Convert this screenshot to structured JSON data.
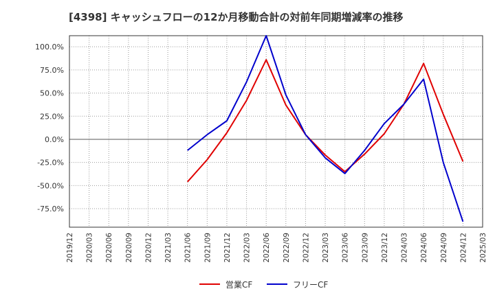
{
  "chart_data": {
    "type": "line",
    "title": "[4398]  キャッシュフローの12か月移動合計の対前年同期増減率の推移",
    "xlabel": "",
    "ylabel": "",
    "x_ticks": [
      "2019/12",
      "2020/03",
      "2020/06",
      "2020/09",
      "2020/12",
      "2021/03",
      "2021/06",
      "2021/09",
      "2021/12",
      "2022/03",
      "2022/06",
      "2022/09",
      "2022/12",
      "2023/03",
      "2023/06",
      "2023/09",
      "2023/12",
      "2024/03",
      "2024/06",
      "2024/09",
      "2024/12",
      "2025/03"
    ],
    "y_ticks": [
      "100.0%",
      "75.0%",
      "50.0%",
      "25.0%",
      "0.0%",
      "-25.0%",
      "-50.0%",
      "-75.0%"
    ],
    "ylim": [
      -95,
      112
    ],
    "grid": true,
    "legend_position": "bottom",
    "series": [
      {
        "name": "営業CF",
        "color": "#e00000",
        "x": [
          "2021/06",
          "2021/09",
          "2021/12",
          "2022/03",
          "2022/06",
          "2022/09",
          "2022/12",
          "2023/03",
          "2023/06",
          "2023/09",
          "2023/12",
          "2024/03",
          "2024/06",
          "2024/09",
          "2024/12"
        ],
        "values": [
          -46,
          -22,
          7,
          42,
          86,
          37,
          5,
          -17,
          -35,
          -16,
          6,
          38,
          82,
          27,
          -24
        ]
      },
      {
        "name": "フリーCF",
        "color": "#0000cc",
        "x": [
          "2021/06",
          "2021/09",
          "2021/12",
          "2022/03",
          "2022/06",
          "2022/09",
          "2022/12",
          "2023/03",
          "2023/06",
          "2023/09",
          "2023/12",
          "2024/03",
          "2024/06",
          "2024/09",
          "2024/12"
        ],
        "values": [
          -12,
          5,
          20,
          62,
          112,
          48,
          5,
          -20,
          -37,
          -12,
          17,
          38,
          65,
          -25,
          -89
        ]
      }
    ]
  }
}
